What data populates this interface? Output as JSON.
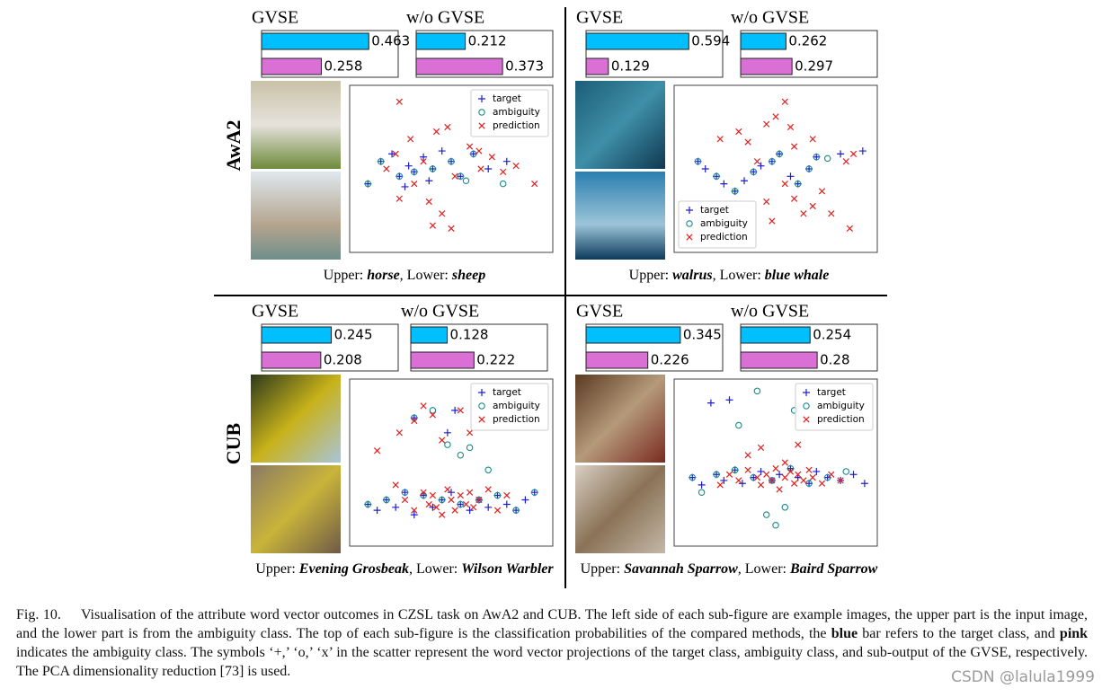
{
  "rows": [
    {
      "label": "AwA2"
    },
    {
      "label": "CUB"
    }
  ],
  "bar_colors": [
    "#00bfff",
    "#da70d6"
  ],
  "panels": [
    {
      "upper_label": "Upper:",
      "upper": "horse",
      "lower_label": ", Lower:",
      "lower": "sheep",
      "bars": [
        {
          "title": "GVSE",
          "values": [
            0.463,
            0.258
          ],
          "xlim": [
            0,
            0.59
          ]
        },
        {
          "title": "w/o GVSE",
          "values": [
            0.212,
            0.373
          ],
          "xlim": [
            0,
            0.59
          ]
        }
      ],
      "scatter": {
        "type": "scatter",
        "legend": "upper right",
        "xlim": [
          0,
          100
        ],
        "ylim": [
          0,
          100
        ],
        "series": [
          {
            "name": "target",
            "color": "#1f1fd0",
            "marker": "+",
            "x": [
              5,
              12,
              18,
              22,
              27,
              30,
              35,
              40,
              45,
              50,
              55,
              62,
              70,
              80,
              38,
              25
            ],
            "y": [
              40,
              55,
              60,
              45,
              52,
              48,
              58,
              50,
              62,
              55,
              45,
              60,
              50,
              55,
              42,
              38
            ]
          },
          {
            "name": "ambiguity",
            "color": "#1a8a8a",
            "marker": "o",
            "x": [
              5,
              12,
              22,
              30,
              40,
              50,
              55,
              62,
              58,
              78
            ],
            "y": [
              40,
              55,
              45,
              48,
              50,
              55,
              45,
              60,
              42,
              40
            ]
          },
          {
            "name": "prediction",
            "color": "#e02020",
            "marker": "x",
            "x": [
              20,
              28,
              35,
              42,
              48,
              52,
              60,
              66,
              72,
              78,
              85,
              95,
              22,
              38,
              45,
              50,
              40,
              30,
              15,
              65,
              22
            ],
            "y": [
              60,
              70,
              55,
              75,
              78,
              45,
              65,
              50,
              58,
              48,
              52,
              40,
              30,
              28,
              20,
              10,
              12,
              40,
              50,
              62,
              95
            ]
          }
        ]
      }
    },
    {
      "upper_label": "Upper:",
      "upper": "walrus",
      "lower_label": ", Lower:",
      "lower": "blue whale",
      "bars": [
        {
          "title": "GVSE",
          "values": [
            0.594,
            0.129
          ],
          "xlim": [
            0,
            0.79
          ]
        },
        {
          "title": "w/o GVSE",
          "values": [
            0.262,
            0.297
          ],
          "xlim": [
            0,
            0.79
          ]
        }
      ],
      "scatter": {
        "type": "scatter",
        "legend": "lower left",
        "xlim": [
          0,
          100
        ],
        "ylim": [
          0,
          100
        ],
        "series": [
          {
            "name": "target",
            "color": "#1f1fd0",
            "marker": "+",
            "x": [
              8,
              12,
              18,
              22,
              28,
              33,
              38,
              42,
              48,
              52,
              58,
              62,
              68,
              72,
              85,
              97
            ],
            "y": [
              55,
              50,
              45,
              40,
              35,
              42,
              48,
              52,
              55,
              60,
              45,
              40,
              50,
              58,
              60,
              62
            ]
          },
          {
            "name": "ambiguity",
            "color": "#1a8a8a",
            "marker": "o",
            "x": [
              8,
              18,
              28,
              38,
              48,
              52,
              62,
              68,
              72,
              78
            ],
            "y": [
              55,
              45,
              35,
              48,
              55,
              60,
              40,
              50,
              58,
              57
            ]
          },
          {
            "name": "prediction",
            "color": "#e02020",
            "marker": "x",
            "x": [
              20,
              30,
              35,
              40,
              45,
              50,
              55,
              60,
              65,
              70,
              75,
              80,
              88,
              92,
              55,
              60,
              48,
              45,
              58,
              70,
              90
            ],
            "y": [
              70,
              75,
              68,
              55,
              80,
              85,
              40,
              65,
              20,
              25,
              35,
              20,
              55,
              60,
              95,
              30,
              15,
              28,
              78,
              70,
              10
            ]
          }
        ]
      }
    },
    {
      "upper_label": "Upper:",
      "upper": "Evening Grosbeak",
      "lower_label": ", Lower:",
      "lower": "Wilson Warbler",
      "bars": [
        {
          "title": "GVSE",
          "values": [
            0.245,
            0.208
          ],
          "xlim": [
            0,
            0.48
          ]
        },
        {
          "title": "w/o GVSE",
          "values": [
            0.128,
            0.222
          ],
          "xlim": [
            0,
            0.48
          ]
        }
      ],
      "scatter": {
        "type": "scatter",
        "legend": "upper right",
        "xlim": [
          0,
          100
        ],
        "ylim": [
          0,
          100
        ],
        "series": [
          {
            "name": "target",
            "color": "#1f1fd0",
            "marker": "+",
            "x": [
              5,
              10,
              15,
              20,
              25,
              30,
              35,
              40,
              45,
              50,
              55,
              60,
              65,
              70,
              75,
              80,
              85,
              90,
              95,
              48,
              52,
              30
            ],
            "y": [
              22,
              18,
              25,
              20,
              30,
              15,
              28,
              20,
              25,
              30,
              22,
              18,
              25,
              20,
              28,
              22,
              18,
              25,
              30,
              70,
              85,
              80
            ]
          },
          {
            "name": "ambiguity",
            "color": "#1a8a8a",
            "marker": "o",
            "x": [
              5,
              15,
              25,
              35,
              45,
              55,
              65,
              75,
              85,
              95,
              55,
              60,
              48,
              70,
              30,
              40
            ],
            "y": [
              22,
              25,
              30,
              28,
              25,
              22,
              25,
              28,
              18,
              30,
              55,
              60,
              62,
              45,
              80,
              85
            ]
          },
          {
            "name": "prediction",
            "color": "#e02020",
            "marker": "x",
            "x": [
              20,
              25,
              30,
              35,
              38,
              40,
              42,
              45,
              48,
              50,
              52,
              55,
              58,
              60,
              62,
              65,
              70,
              75,
              80,
              45,
              40,
              35,
              30,
              55,
              60,
              10,
              22
            ],
            "y": [
              35,
              25,
              18,
              30,
              22,
              28,
              20,
              15,
              32,
              25,
              18,
              28,
              22,
              30,
              20,
              25,
              32,
              18,
              28,
              65,
              82,
              88,
              78,
              85,
              70,
              58,
              70
            ]
          }
        ]
      }
    },
    {
      "upper_label": "Upper:",
      "upper": "Savannah Sparrow",
      "lower_label": ", Lower:",
      "lower": "Baird Sparrow",
      "bars": [
        {
          "title": "GVSE",
          "values": [
            0.345,
            0.226
          ],
          "xlim": [
            0,
            0.5
          ]
        },
        {
          "title": "w/o GVSE",
          "values": [
            0.254,
            0.28
          ],
          "xlim": [
            0,
            0.5
          ]
        }
      ],
      "scatter": {
        "type": "scatter",
        "legend": "upper right",
        "xlim": [
          0,
          100
        ],
        "ylim": [
          0,
          100
        ],
        "series": [
          {
            "name": "target",
            "color": "#1f1fd0",
            "marker": "+",
            "x": [
              5,
              10,
              18,
              22,
              28,
              32,
              38,
              42,
              48,
              52,
              58,
              62,
              68,
              72,
              78,
              85,
              92,
              98,
              15,
              25
            ],
            "y": [
              40,
              35,
              42,
              38,
              45,
              36,
              40,
              44,
              38,
              42,
              46,
              40,
              36,
              44,
              40,
              38,
              42,
              36,
              90,
              92
            ]
          },
          {
            "name": "ambiguity",
            "color": "#1a8a8a",
            "marker": "o",
            "x": [
              5,
              10,
              18,
              28,
              38,
              48,
              58,
              68,
              78,
              88,
              45,
              50,
              30,
              55,
              40,
              60
            ],
            "y": [
              40,
              30,
              42,
              45,
              40,
              38,
              46,
              36,
              40,
              44,
              15,
              8,
              75,
              20,
              98,
              85
            ]
          },
          {
            "name": "prediction",
            "color": "#e02020",
            "marker": "x",
            "x": [
              20,
              25,
              30,
              35,
              40,
              42,
              45,
              48,
              50,
              52,
              55,
              58,
              60,
              62,
              65,
              68,
              70,
              75,
              80,
              85,
              35,
              42,
              55,
              62
            ],
            "y": [
              35,
              42,
              38,
              45,
              40,
              35,
              42,
              38,
              46,
              32,
              40,
              44,
              36,
              42,
              38,
              45,
              40,
              36,
              42,
              38,
              55,
              60,
              50,
              62
            ]
          }
        ]
      }
    }
  ],
  "caption": {
    "label": "Fig. 10.",
    "parts": [
      "Visualisation of the attribute word vector outcomes in CZSL task on AwA2 and CUB. The left side of each sub-figure are example images, the upper part is the input image, and the lower part is from the ambiguity class. The top of each sub-figure is the classification probabilities of the compared methods, the",
      "blue",
      "bar refers to the target class, and",
      "pink",
      "indicates the ambiguity class. The symbols ‘+,’ ‘o,’ ‘x’ in the scatter represent the word vector projections of the target class, ambiguity class, and sub-output of the GVSE, respectively. The PCA dimensionality reduction [73] is used."
    ]
  },
  "watermark": "CSDN @lalula1999"
}
